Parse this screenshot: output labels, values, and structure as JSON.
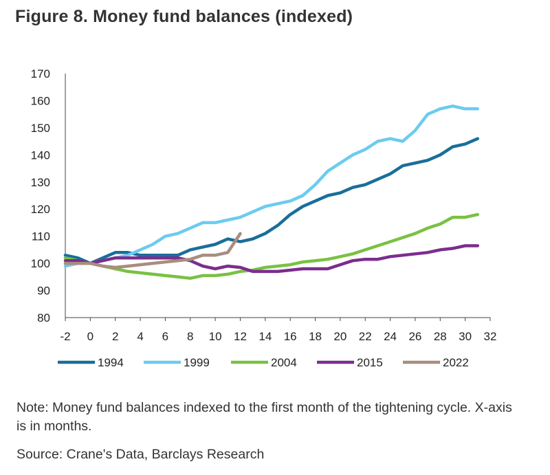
{
  "header": {
    "title": "Figure 8. Money fund balances (indexed)"
  },
  "footer": {
    "note": "Note: Money fund balances indexed to the first month of the tightening cycle. X-axis is in months.",
    "source": "Source: Crane's Data, Barclays Research"
  },
  "chart_data": {
    "type": "line",
    "title": "Figure 8. Money fund balances (indexed)",
    "xlabel": "",
    "ylabel": "",
    "xlim": [
      -2,
      32
    ],
    "ylim": [
      80,
      170
    ],
    "xticks": [
      -2,
      0,
      2,
      4,
      6,
      8,
      10,
      12,
      14,
      16,
      18,
      20,
      22,
      24,
      26,
      28,
      30,
      32
    ],
    "yticks": [
      80,
      90,
      100,
      110,
      120,
      130,
      140,
      150,
      160,
      170
    ],
    "grid": false,
    "legend_position": "bottom",
    "series": [
      {
        "name": "1994",
        "color": "#1a6e9a",
        "x": [
          -2,
          -1,
          0,
          1,
          2,
          3,
          4,
          5,
          6,
          7,
          8,
          9,
          10,
          11,
          12,
          13,
          14,
          15,
          16,
          17,
          18,
          19,
          20,
          21,
          22,
          23,
          24,
          25,
          26,
          27,
          28,
          29,
          30,
          31
        ],
        "values": [
          103,
          102,
          100,
          102,
          104,
          104,
          103,
          103,
          103,
          103,
          105,
          106,
          107,
          109,
          108,
          109,
          111,
          114,
          118,
          121,
          123,
          125,
          126,
          128,
          129,
          131,
          133,
          136,
          137,
          138,
          140,
          143,
          144,
          146
        ]
      },
      {
        "name": "1999",
        "color": "#6ccbf0",
        "x": [
          -2,
          -1,
          0,
          1,
          2,
          3,
          4,
          5,
          6,
          7,
          8,
          9,
          10,
          11,
          12,
          13,
          14,
          15,
          16,
          17,
          18,
          19,
          20,
          21,
          22,
          23,
          24,
          25,
          26,
          27,
          28,
          29,
          30,
          31
        ],
        "values": [
          99,
          100,
          100,
          101,
          102,
          103,
          105,
          107,
          110,
          111,
          113,
          115,
          115,
          116,
          117,
          119,
          121,
          122,
          123,
          125,
          129,
          134,
          137,
          140,
          142,
          145,
          146,
          145,
          149,
          155,
          157,
          158,
          157,
          157
        ]
      },
      {
        "name": "2004",
        "color": "#7ac143",
        "x": [
          -2,
          -1,
          0,
          1,
          2,
          3,
          4,
          5,
          6,
          7,
          8,
          9,
          10,
          11,
          12,
          13,
          14,
          15,
          16,
          17,
          18,
          19,
          20,
          21,
          22,
          23,
          24,
          25,
          26,
          27,
          28,
          29,
          30,
          31
        ],
        "values": [
          102,
          101,
          100,
          99,
          98,
          97,
          96.5,
          96,
          95.5,
          95,
          94.5,
          95.5,
          95.5,
          96,
          97,
          97.5,
          98.5,
          99,
          99.5,
          100.5,
          101,
          101.5,
          102.5,
          103.5,
          105,
          106.5,
          108,
          109.5,
          111,
          113,
          114.5,
          117,
          117,
          118
        ]
      },
      {
        "name": "2015",
        "color": "#7b2d8e",
        "x": [
          -2,
          -1,
          0,
          1,
          2,
          3,
          4,
          5,
          6,
          7,
          8,
          9,
          10,
          11,
          12,
          13,
          14,
          15,
          16,
          17,
          18,
          19,
          20,
          21,
          22,
          23,
          24,
          25,
          26,
          27,
          28,
          29,
          30,
          31
        ],
        "values": [
          101,
          101,
          100,
          101,
          102,
          102,
          102,
          102,
          102,
          102,
          101,
          99,
          98,
          99,
          98.5,
          97,
          97,
          97,
          97.5,
          98,
          98,
          98,
          99.5,
          101,
          101.5,
          101.5,
          102.5,
          103,
          103.5,
          104,
          105,
          105.5,
          106.5,
          106.5
        ]
      },
      {
        "name": "2022",
        "color": "#a88d7e",
        "x": [
          -2,
          -1,
          0,
          1,
          2,
          3,
          4,
          5,
          6,
          7,
          8,
          9,
          10,
          11,
          12
        ],
        "values": [
          100,
          100,
          100,
          99,
          98.5,
          99,
          99.5,
          100,
          100.5,
          101,
          101.5,
          103,
          103,
          104,
          111
        ]
      }
    ]
  }
}
